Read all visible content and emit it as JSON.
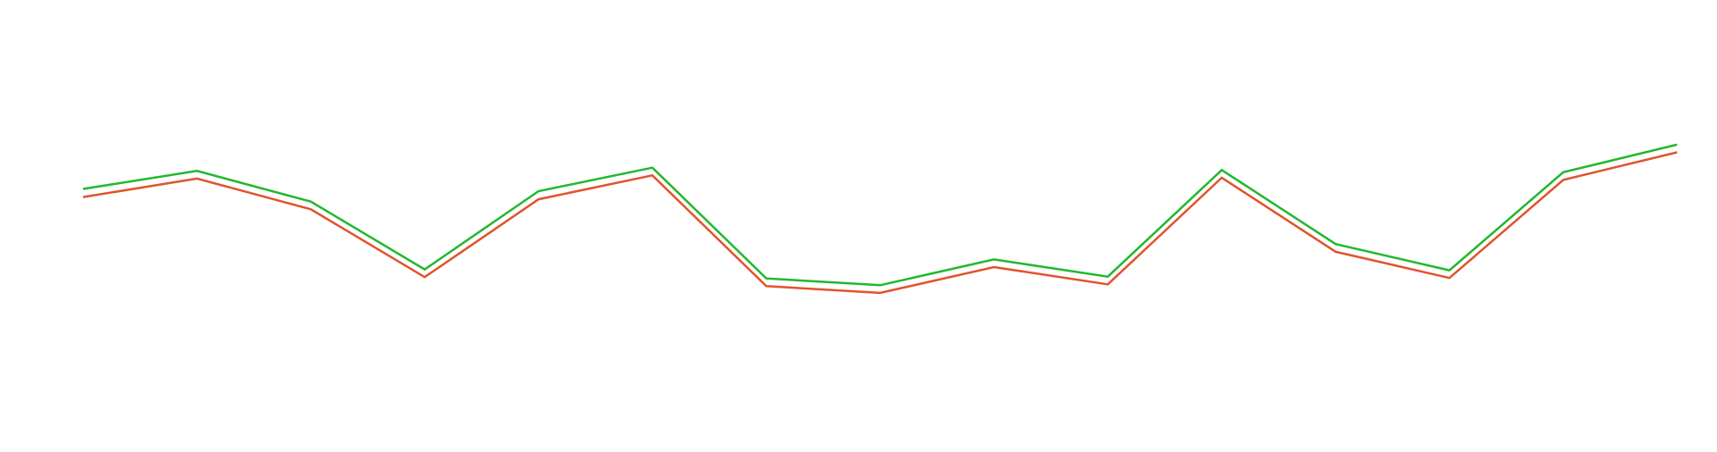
{
  "chart_data": {
    "type": "line",
    "title": "",
    "xlabel": "",
    "ylabel": "",
    "grid": false,
    "legend": "none",
    "x": [
      0,
      1,
      2,
      3,
      4,
      5,
      6,
      7,
      8,
      9,
      10,
      11,
      12,
      13,
      14
    ],
    "xlim": [
      -0.73,
      14.35
    ],
    "ylim": [
      0,
      100
    ],
    "series": [
      {
        "color": "#22b830",
        "values": [
          58.2,
          62.2,
          55.4,
          40.4,
          57.7,
          62.9,
          38.4,
          36.9,
          42.6,
          38.8,
          62.4,
          46.0,
          40.2,
          61.9,
          68.0
        ]
      },
      {
        "color": "#e0542d",
        "values": [
          56.4,
          60.5,
          53.7,
          38.7,
          55.9,
          61.2,
          36.7,
          35.2,
          40.9,
          37.1,
          60.7,
          44.3,
          38.5,
          60.2,
          66.3
        ]
      }
    ]
  }
}
